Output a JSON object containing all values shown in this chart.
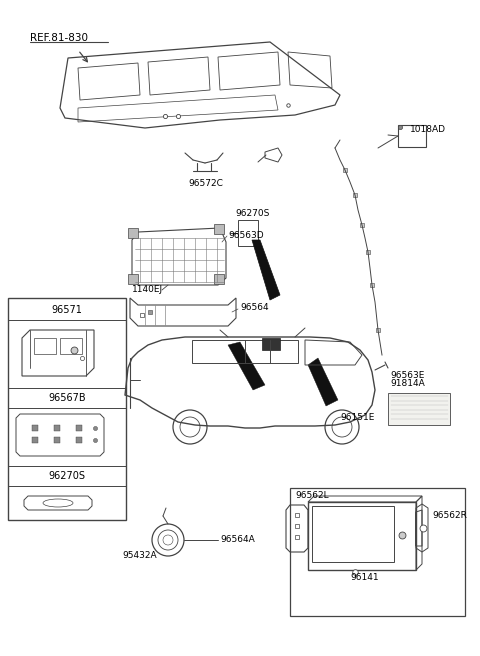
{
  "bg_color": "#ffffff",
  "line_color": "#444444",
  "text_color": "#000000",
  "labels": {
    "ref": "REF.81-830",
    "p96572C": "96572C",
    "p1018AD": "1018AD",
    "p96270S_top": "96270S",
    "p96563D": "96563D",
    "p1140EJ": "1140EJ",
    "p96564": "96564",
    "p96571": "96571",
    "p96567B": "96567B",
    "p96270S_box": "96270S",
    "p96563E": "96563E",
    "p91814A": "91814A",
    "p96151E": "96151E",
    "p96562L": "96562L",
    "p96562R": "96562R",
    "p96141": "96141",
    "p95432A": "95432A",
    "p96564A": "96564A"
  }
}
